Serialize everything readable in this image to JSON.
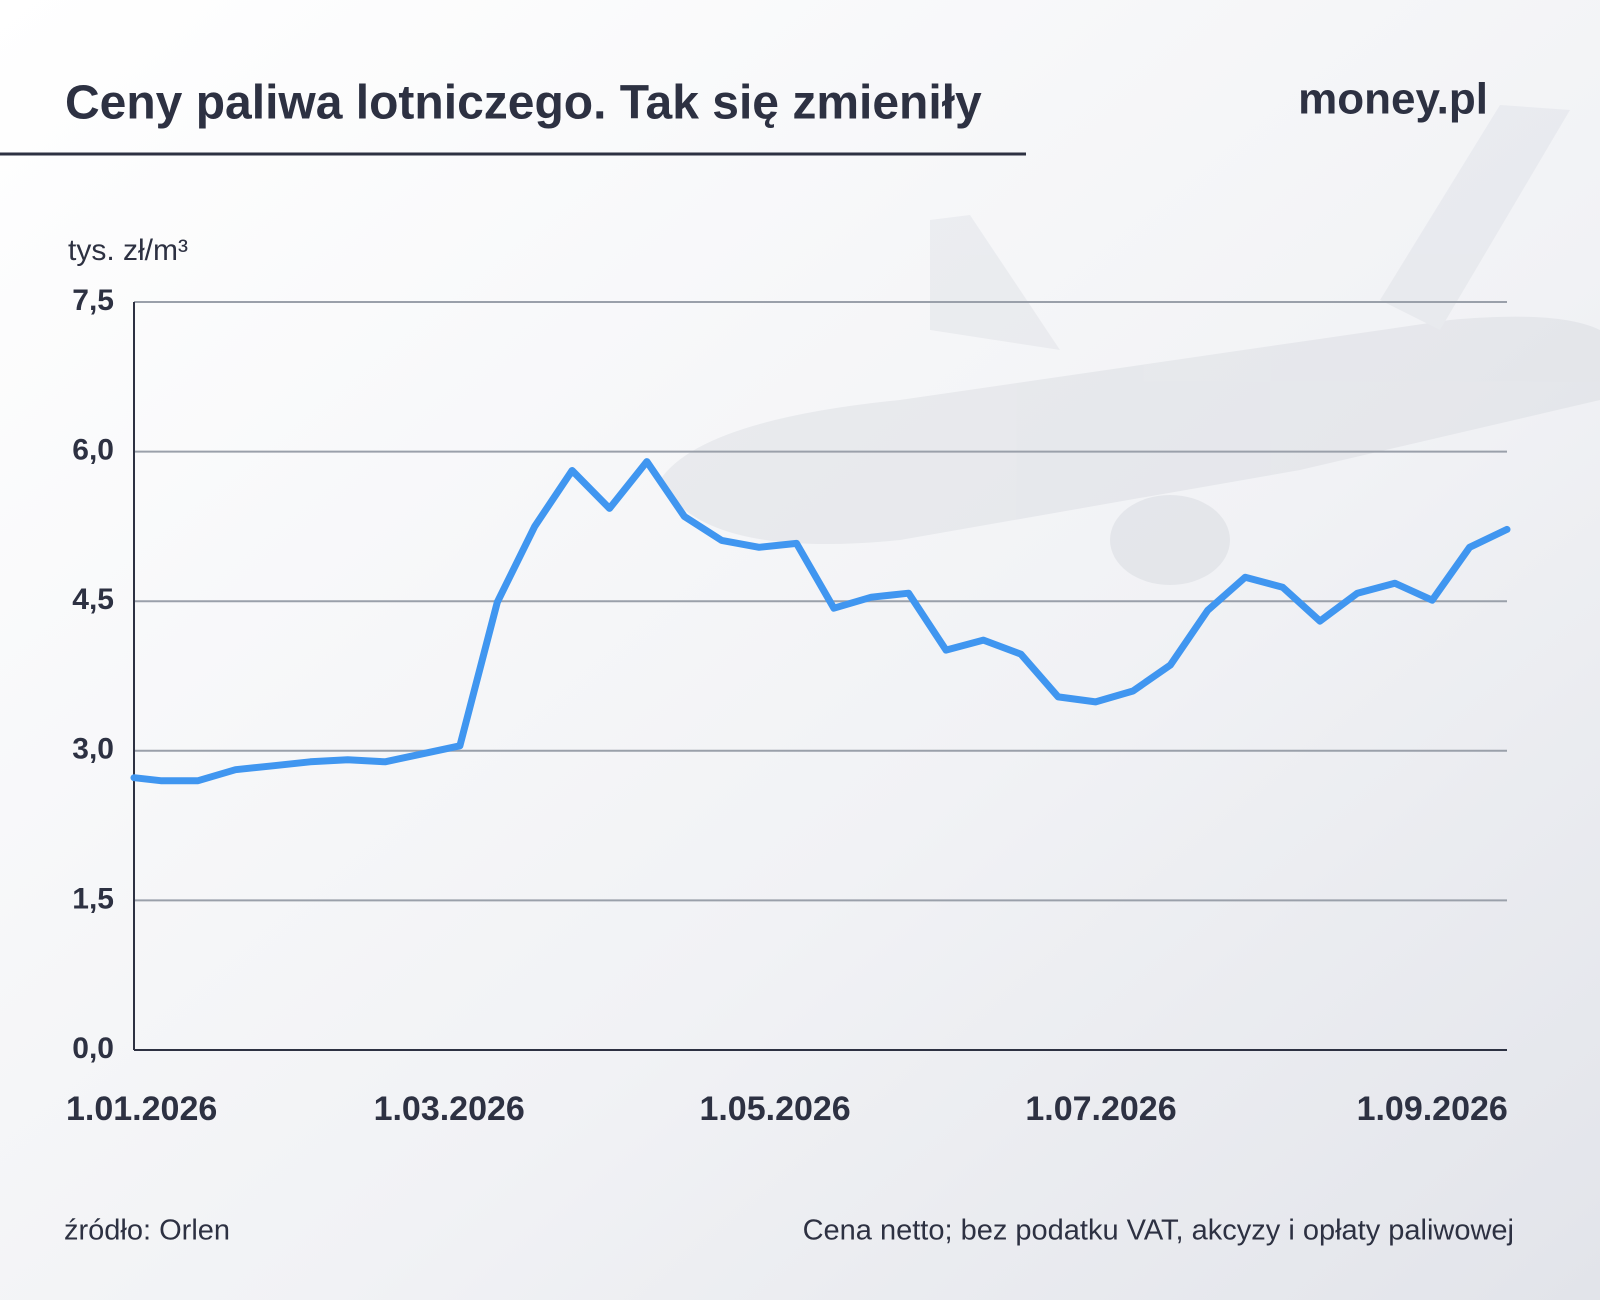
{
  "chart_data": {
    "type": "line",
    "title": "Ceny paliwa lotniczego. Tak się zmieniły",
    "logo": "money.pl",
    "y_label": "tys. zł/m³",
    "source": "źródło: Orlen",
    "note": "Cena netto; bez podatku VAT, akcyzy i opłaty paliwowej",
    "x": [
      "2026-01-01",
      "2026-01-06",
      "2026-01-13",
      "2026-01-20",
      "2026-01-27",
      "2026-02-03",
      "2026-02-10",
      "2026-02-17",
      "2026-02-24",
      "2026-03-03",
      "2026-03-10",
      "2026-03-17",
      "2026-03-24",
      "2026-03-31",
      "2026-04-07",
      "2026-04-14",
      "2026-04-21",
      "2026-04-28",
      "2026-05-05",
      "2026-05-12",
      "2026-05-19",
      "2026-05-26",
      "2026-06-02",
      "2026-06-09",
      "2026-06-16",
      "2026-06-23",
      "2026-06-30",
      "2026-07-07",
      "2026-07-14",
      "2026-07-21",
      "2026-07-28",
      "2026-08-04",
      "2026-08-11",
      "2026-08-18",
      "2026-08-25",
      "2026-09-01",
      "2026-09-08",
      "2026-09-15"
    ],
    "series": [
      {
        "color": "#4096f0",
        "values": [
          2.73,
          2.7,
          2.7,
          2.81,
          2.85,
          2.89,
          2.91,
          2.89,
          2.97,
          3.05,
          4.49,
          5.25,
          5.81,
          5.43,
          5.9,
          5.35,
          5.11,
          5.04,
          5.08,
          4.43,
          4.54,
          4.58,
          4.01,
          4.11,
          3.97,
          3.54,
          3.49,
          3.6,
          3.86,
          4.41,
          4.74,
          4.64,
          4.3,
          4.58,
          4.68,
          4.51,
          5.04,
          5.22
        ]
      }
    ],
    "xlim": [
      "2026-01-01",
      "2026-09-15"
    ],
    "xticks": [
      {
        "value": "2026-01-01",
        "label": "1.01.2026"
      },
      {
        "value": "2026-03-01",
        "label": "1.03.2026"
      },
      {
        "value": "2026-05-01",
        "label": "1.05.2026"
      },
      {
        "value": "2026-07-01",
        "label": "1.07.2026"
      },
      {
        "value": "2026-09-01",
        "label": "1.09.2026"
      }
    ],
    "ylim": [
      0,
      7.5
    ],
    "yticks": [
      {
        "value": 0,
        "label": "0,0"
      },
      {
        "value": 1.5,
        "label": "1,5"
      },
      {
        "value": 3,
        "label": "3,0"
      },
      {
        "value": 4.5,
        "label": "4,5"
      },
      {
        "value": 6,
        "label": "6,0"
      },
      {
        "value": 7.5,
        "label": "7,5"
      }
    ],
    "grid": true
  }
}
